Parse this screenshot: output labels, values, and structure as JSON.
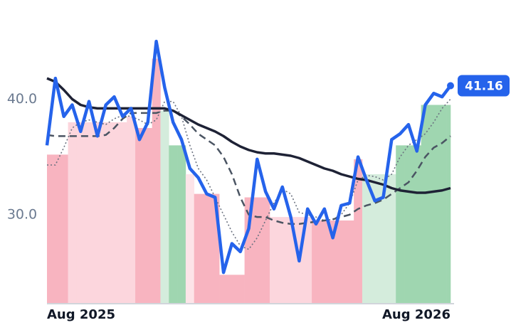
{
  "chart_data": {
    "type": "line",
    "categories": [
      "Aug 2025",
      null,
      null,
      null,
      null,
      null,
      null,
      null,
      null,
      null,
      null,
      null,
      null,
      null,
      null,
      null,
      null,
      null,
      null,
      null,
      null,
      null,
      null,
      null,
      null,
      null,
      null,
      null,
      null,
      null,
      null,
      null,
      null,
      null,
      null,
      null,
      null,
      null,
      null,
      null,
      null,
      null,
      null,
      null,
      null,
      null,
      null,
      null,
      "Aug 2026"
    ],
    "ylim": [
      22.3,
      45.5
    ],
    "yticks": [
      {
        "value": 30,
        "label": "30.0"
      },
      {
        "value": 40,
        "label": "40.0"
      }
    ],
    "background_bars": {
      "values": [
        35.2,
        35.2,
        35.2,
        38.0,
        38.0,
        38.0,
        38.0,
        38.0,
        38.0,
        38.0,
        38.5,
        37.5,
        37.5,
        43.5,
        39.0,
        36.0,
        36.0,
        33.5,
        31.8,
        31.8,
        31.8,
        24.8,
        24.8,
        24.8,
        31.5,
        31.5,
        31.5,
        29.8,
        29.8,
        29.8,
        29.8,
        29.8,
        29.5,
        29.5,
        29.5,
        29.5,
        29.5,
        34.8,
        33.5,
        33.5,
        33.5,
        33.5,
        36.0,
        36.0,
        36.0,
        39.5,
        39.5,
        39.5,
        39.5
      ],
      "colors": [
        "#f8b4c0",
        "#f8b4c0",
        "#f8b4c0",
        "#fcd6dd",
        "#fcd6dd",
        "#fcd6dd",
        "#fcd6dd",
        "#fcd6dd",
        "#fcd6dd",
        "#fcd6dd",
        "#fcd6dd",
        "#f8b4c0",
        "#f8b4c0",
        "#f8b4c0",
        "#d4ecdc",
        "#9fd6b0",
        "#9fd6b0",
        "#fde4e8",
        "#f8b4c0",
        "#f8b4c0",
        "#f8b4c0",
        "#f8b4c0",
        "#f8b4c0",
        "#f8b4c0",
        "#f8b4c0",
        "#f8b4c0",
        "#f8b4c0",
        "#fcd6dd",
        "#fcd6dd",
        "#fcd6dd",
        "#fcd6dd",
        "#fcd6dd",
        "#f8b4c0",
        "#f8b4c0",
        "#f8b4c0",
        "#f8b4c0",
        "#f8b4c0",
        "#f8b4c0",
        "#d4ecdc",
        "#d4ecdc",
        "#d4ecdc",
        "#d4ecdc",
        "#9fd6b0",
        "#9fd6b0",
        "#9fd6b0",
        "#9fd6b0",
        "#9fd6b0",
        "#9fd6b0",
        "#9fd6b0"
      ]
    },
    "series": [
      {
        "color": "#6b7280",
        "dash": "dotted",
        "values": [
          34.3,
          34.3,
          35.8,
          37.5,
          38.0,
          38.2,
          38.0,
          37.8,
          38.3,
          38.6,
          38.5,
          38.2,
          37.8,
          38.2,
          39.8,
          39.8,
          38.5,
          36.0,
          34.0,
          33.0,
          31.5,
          30.0,
          28.5,
          27.3,
          27.0,
          28.0,
          29.5,
          31.0,
          32.2,
          31.8,
          30.2,
          30.0,
          29.8,
          29.5,
          29.6,
          30.0,
          31.0,
          33.0,
          33.4,
          33.3,
          33.0,
          33.5,
          35.0,
          36.0,
          36.5,
          37.0,
          38.0,
          39.2,
          40.0
        ]
      },
      {
        "color": "#4b5563",
        "dash": "dashed",
        "values": [
          36.9,
          36.8,
          36.8,
          36.8,
          36.8,
          36.8,
          36.8,
          36.9,
          37.5,
          38.3,
          38.8,
          38.8,
          38.8,
          38.8,
          39.0,
          39.0,
          38.5,
          37.8,
          37.0,
          36.5,
          36.0,
          35.0,
          33.5,
          31.5,
          30.0,
          29.8,
          29.8,
          29.5,
          29.3,
          29.2,
          29.2,
          29.3,
          29.4,
          29.5,
          29.6,
          29.8,
          30.0,
          30.5,
          30.8,
          31.0,
          31.3,
          31.8,
          32.3,
          32.8,
          33.8,
          35.0,
          35.8,
          36.2,
          36.8
        ]
      },
      {
        "color": "#1e2235",
        "dash": "solid",
        "values": [
          41.8,
          41.5,
          40.8,
          40.0,
          39.5,
          39.3,
          39.2,
          39.2,
          39.2,
          39.2,
          39.2,
          39.2,
          39.2,
          39.2,
          39.2,
          39.0,
          38.6,
          38.2,
          37.8,
          37.5,
          37.2,
          36.8,
          36.3,
          35.9,
          35.6,
          35.4,
          35.3,
          35.3,
          35.2,
          35.1,
          34.9,
          34.6,
          34.3,
          34.0,
          33.8,
          33.5,
          33.3,
          33.1,
          33.0,
          32.8,
          32.6,
          32.3,
          32.1,
          32.0,
          31.9,
          31.9,
          32.0,
          32.1,
          32.3
        ]
      },
      {
        "color": "#2563eb",
        "dash": "solid",
        "last_label": true,
        "values": [
          36.0,
          41.8,
          38.5,
          39.5,
          37.2,
          39.8,
          36.8,
          39.5,
          40.2,
          38.5,
          39.2,
          36.5,
          38.0,
          45.0,
          41.0,
          38.0,
          36.5,
          34.0,
          33.2,
          31.8,
          31.5,
          25.0,
          27.5,
          26.8,
          28.8,
          34.8,
          32.0,
          30.5,
          32.4,
          29.8,
          26.0,
          30.5,
          29.2,
          30.5,
          28.0,
          30.8,
          31.0,
          35.0,
          33.0,
          31.2,
          31.5,
          36.5,
          37.0,
          37.8,
          35.5,
          39.5,
          40.5,
          40.2,
          41.16
        ]
      }
    ]
  }
}
